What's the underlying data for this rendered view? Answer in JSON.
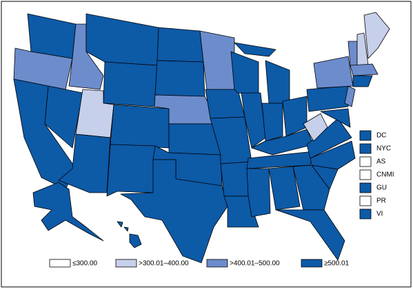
{
  "legend": {
    "items": [
      {
        "label": "≤300.00",
        "color": "#ffffff"
      },
      {
        "label": ">300.01–400.00",
        "color": "#c7d0ea"
      },
      {
        "label": ">400.01–500.00",
        "color": "#6c8ccc"
      },
      {
        "label": "≥500.01",
        "color": "#0d5aa7"
      }
    ]
  },
  "territories": [
    {
      "label": "DC",
      "category": 3
    },
    {
      "label": "NYC",
      "category": 3
    },
    {
      "label": "AS",
      "category": 0
    },
    {
      "label": "CNMI",
      "category": 0
    },
    {
      "label": "GU",
      "category": 3
    },
    {
      "label": "PR",
      "category": 0
    },
    {
      "label": "VI",
      "category": 3
    }
  ]
}
